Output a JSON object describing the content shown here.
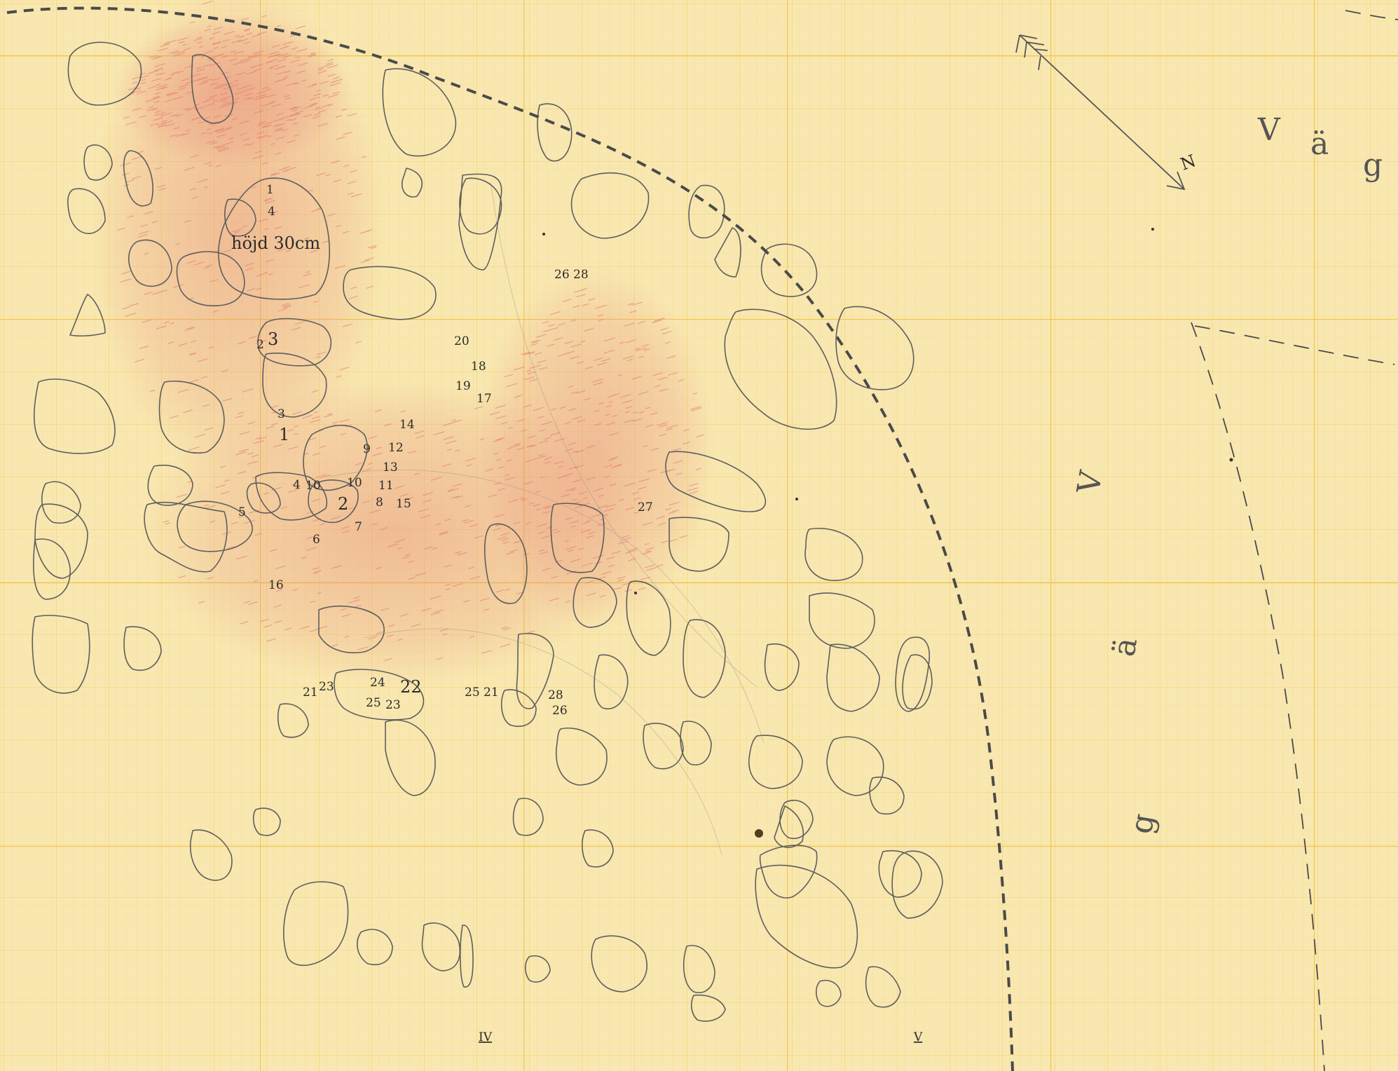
{
  "sheet": {
    "paper_color": "#f8e7b0",
    "grid_color": "#f0cd5c",
    "pencil_color": "#5e5e5e",
    "shading_color": "#e2736a"
  },
  "labels": {
    "hojd": "höjd 30cm",
    "north": "N",
    "vag_v": "V",
    "vag_a": "ä",
    "vag_g": "g",
    "section_iv": "IV",
    "section_v": "V"
  },
  "finds": [
    {
      "id": "f1",
      "text": "1"
    },
    {
      "id": "f4a",
      "text": "4"
    },
    {
      "id": "f3a",
      "text": "3"
    },
    {
      "id": "f2a",
      "text": "2"
    },
    {
      "id": "f3b",
      "text": "3"
    },
    {
      "id": "f1b",
      "text": "1"
    },
    {
      "id": "f20",
      "text": "20"
    },
    {
      "id": "f18",
      "text": "18"
    },
    {
      "id": "f19",
      "text": "19"
    },
    {
      "id": "f17",
      "text": "17"
    },
    {
      "id": "f14",
      "text": "14"
    },
    {
      "id": "f9",
      "text": "9"
    },
    {
      "id": "f12",
      "text": "12"
    },
    {
      "id": "f13",
      "text": "13"
    },
    {
      "id": "f11",
      "text": "11"
    },
    {
      "id": "f4b",
      "text": "4"
    },
    {
      "id": "f10a",
      "text": "10"
    },
    {
      "id": "f10b",
      "text": "10"
    },
    {
      "id": "f2b",
      "text": "2"
    },
    {
      "id": "f8",
      "text": "8"
    },
    {
      "id": "f15",
      "text": "15"
    },
    {
      "id": "f7",
      "text": "7"
    },
    {
      "id": "f5",
      "text": "5"
    },
    {
      "id": "f6",
      "text": "6"
    },
    {
      "id": "f16",
      "text": "16"
    },
    {
      "id": "f2628",
      "text": "26 28"
    },
    {
      "id": "f27",
      "text": "27"
    },
    {
      "id": "f21a",
      "text": "21"
    },
    {
      "id": "f23a",
      "text": "23"
    },
    {
      "id": "f24",
      "text": "24"
    },
    {
      "id": "f22",
      "text": "22"
    },
    {
      "id": "f25",
      "text": "25"
    },
    {
      "id": "f23b",
      "text": "23"
    },
    {
      "id": "f2521",
      "text": "25 21"
    },
    {
      "id": "f28",
      "text": "28"
    },
    {
      "id": "f26",
      "text": "26"
    }
  ]
}
